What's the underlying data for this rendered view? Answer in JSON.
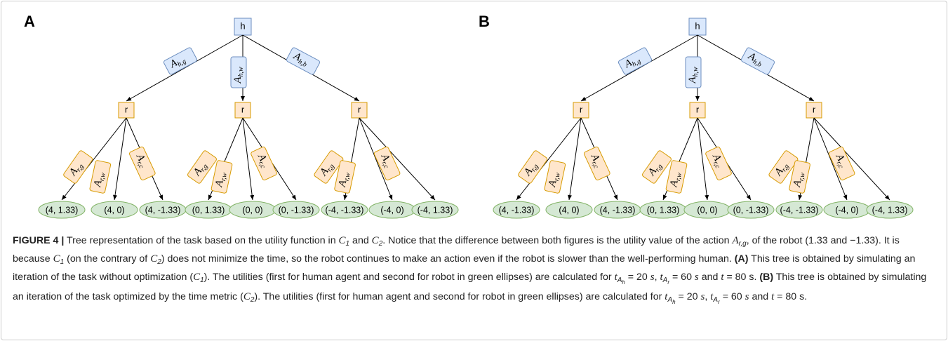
{
  "trees": [
    {
      "panel": "A",
      "root": "h",
      "edges": [
        {
          "base": "A",
          "sub": "h,g"
        },
        {
          "base": "A",
          "sub": "h,w"
        },
        {
          "base": "A",
          "sub": "h,b"
        }
      ],
      "children": [
        {
          "label": "r",
          "edges": [
            {
              "base": "A",
              "sub": "r,g"
            },
            {
              "base": "A",
              "sub": "r,w"
            },
            {
              "base": "A",
              "sub": "r,c"
            }
          ],
          "leaves": [
            "(4, 1.33)",
            "(4, 0)",
            "(4, -1.33)"
          ]
        },
        {
          "label": "r",
          "edges": [
            {
              "base": "A",
              "sub": "r,g"
            },
            {
              "base": "A",
              "sub": "r,w"
            },
            {
              "base": "A",
              "sub": "r,c"
            }
          ],
          "leaves": [
            "(0, 1.33)",
            "(0, 0)",
            "(0, -1.33)"
          ]
        },
        {
          "label": "r",
          "edges": [
            {
              "base": "A",
              "sub": "r,g"
            },
            {
              "base": "A",
              "sub": "r,w"
            },
            {
              "base": "A",
              "sub": "r,c"
            }
          ],
          "leaves": [
            "(-4, -1.33)",
            "(-4, 0)",
            "(-4, 1.33)"
          ]
        }
      ]
    },
    {
      "panel": "B",
      "root": "h",
      "edges": [
        {
          "base": "A",
          "sub": "h,g"
        },
        {
          "base": "A",
          "sub": "h,w"
        },
        {
          "base": "A",
          "sub": "h,b"
        }
      ],
      "children": [
        {
          "label": "r",
          "edges": [
            {
              "base": "A",
              "sub": "r,g"
            },
            {
              "base": "A",
              "sub": "r,w"
            },
            {
              "base": "A",
              "sub": "r,c"
            }
          ],
          "leaves": [
            "(4, -1.33)",
            "(4, 0)",
            "(4, -1.33)"
          ]
        },
        {
          "label": "r",
          "edges": [
            {
              "base": "A",
              "sub": "r,g"
            },
            {
              "base": "A",
              "sub": "r,w"
            },
            {
              "base": "A",
              "sub": "r,c"
            }
          ],
          "leaves": [
            "(0, 1.33)",
            "(0, 0)",
            "(0, -1.33)"
          ]
        },
        {
          "label": "r",
          "edges": [
            {
              "base": "A",
              "sub": "r,g"
            },
            {
              "base": "A",
              "sub": "r,w"
            },
            {
              "base": "A",
              "sub": "r,c"
            }
          ],
          "leaves": [
            "(-4, -1.33)",
            "(-4, 0)",
            "(-4, 1.33)"
          ]
        }
      ]
    }
  ],
  "caption": [
    {
      "text": "FIGURE 4 |",
      "style": "bold"
    },
    {
      "text": " Tree representation of the task based on the utility function in "
    },
    {
      "text": "C",
      "style": "italic"
    },
    {
      "text": "1",
      "style": "sub"
    },
    {
      "text": " and "
    },
    {
      "text": "C",
      "style": "italic"
    },
    {
      "text": "2",
      "style": "sub"
    },
    {
      "text": ". Notice that the difference between both figures is the utility value of the action "
    },
    {
      "text": "A",
      "style": "italic"
    },
    {
      "text": "r,g",
      "style": "sub"
    },
    {
      "text": ", of the robot (1.33 and −1.33). It is because "
    },
    {
      "text": "C",
      "style": "italic"
    },
    {
      "text": "1",
      "style": "sub"
    },
    {
      "text": " (on the contrary of "
    },
    {
      "text": "C",
      "style": "italic"
    },
    {
      "text": "2",
      "style": "sub"
    },
    {
      "text": ") does not minimize the time, so the robot continues to make an action even if the robot is slower than the well-performing human. "
    },
    {
      "text": "(A)",
      "style": "bold"
    },
    {
      "text": " This tree is obtained by simulating an iteration of the task without optimization ("
    },
    {
      "text": "C",
      "style": "italic"
    },
    {
      "text": "1",
      "style": "sub"
    },
    {
      "text": "). The utilities (first for human agent and second for robot in green ellipses) are calculated for "
    },
    {
      "text": "t",
      "style": "italic"
    },
    {
      "text": "A",
      "style": "sub"
    },
    {
      "text": "h",
      "style": "subsub"
    },
    {
      "text": " = 20 "
    },
    {
      "text": "s",
      "style": "italic"
    },
    {
      "text": ", "
    },
    {
      "text": "t",
      "style": "italic"
    },
    {
      "text": "A",
      "style": "sub"
    },
    {
      "text": "r",
      "style": "subsub"
    },
    {
      "text": " = 60 "
    },
    {
      "text": "s",
      "style": "italic"
    },
    {
      "text": " and "
    },
    {
      "text": "t",
      "style": "italic"
    },
    {
      "text": " = 80 s. "
    },
    {
      "text": "(B)",
      "style": "bold"
    },
    {
      "text": " This tree is obtained by simulating an iteration of the task optimized by the time metric ("
    },
    {
      "text": "C",
      "style": "italic"
    },
    {
      "text": "2",
      "style": "sub"
    },
    {
      "text": "). The utilities (first for human agent and second for robot in green ellipses) are calculated for "
    },
    {
      "text": "t",
      "style": "italic"
    },
    {
      "text": "A",
      "style": "sub"
    },
    {
      "text": "h",
      "style": "subsub"
    },
    {
      "text": " = 20 "
    },
    {
      "text": "s",
      "style": "italic"
    },
    {
      "text": ", "
    },
    {
      "text": "t",
      "style": "italic"
    },
    {
      "text": "A",
      "style": "sub"
    },
    {
      "text": "r",
      "style": "subsub"
    },
    {
      "text": " = 60 "
    },
    {
      "text": "s",
      "style": "italic"
    },
    {
      "text": " and "
    },
    {
      "text": "t",
      "style": "italic"
    },
    {
      "text": " = 80 s."
    }
  ]
}
